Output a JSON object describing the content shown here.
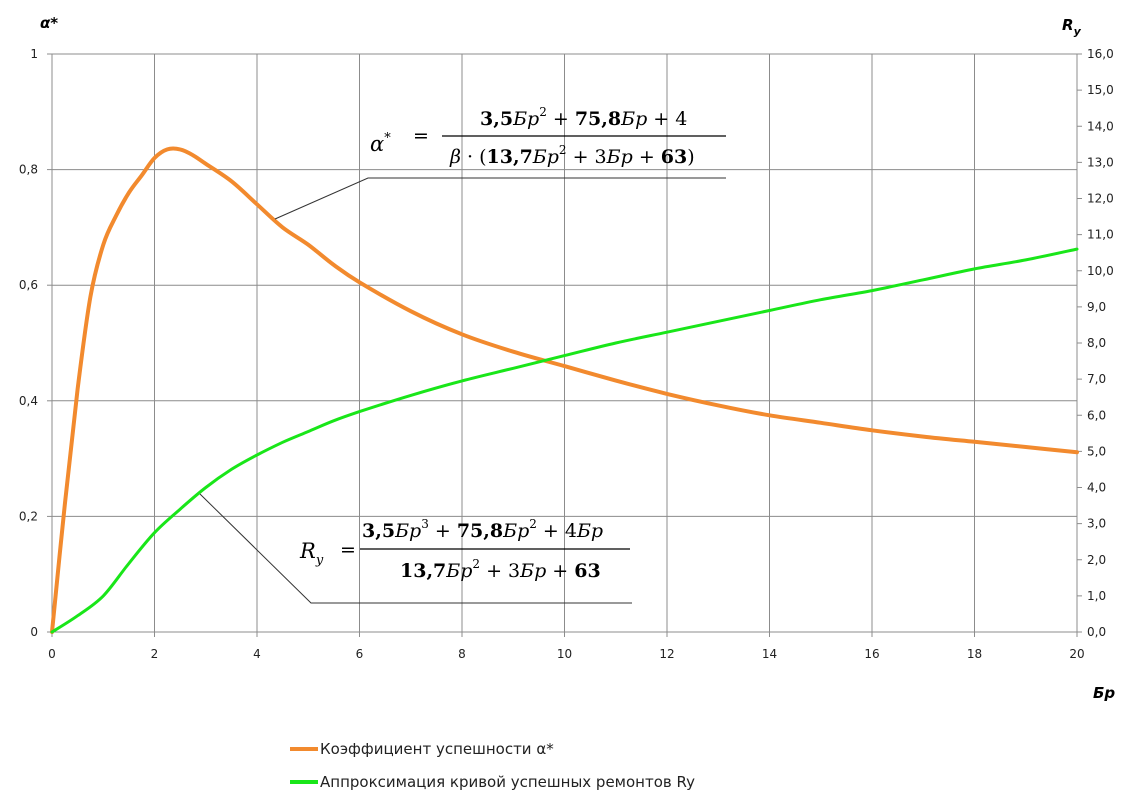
{
  "chart_data": {
    "type": "line",
    "xlabel": "Бр",
    "ylabel_left": "α*",
    "ylabel_right": "R",
    "ylabel_right_sub": "y",
    "xlim": [
      0,
      20
    ],
    "ylim_left": [
      0,
      1
    ],
    "ylim_right": [
      0,
      16
    ],
    "x_ticks": [
      "0",
      "2",
      "4",
      "6",
      "8",
      "10",
      "12",
      "14",
      "16",
      "18",
      "20"
    ],
    "y_left_ticks": [
      "0",
      "0,2",
      "0,4",
      "0,6",
      "0,8",
      "1"
    ],
    "y_right_ticks": [
      "0,0",
      "1,0",
      "2,0",
      "3,0",
      "4,0",
      "5,0",
      "6,0",
      "7,0",
      "8,0",
      "9,0",
      "10,0",
      "11,0",
      "12,0",
      "13,0",
      "14,0",
      "15,0",
      "16,0"
    ],
    "grid": true,
    "legend_position": "bottom",
    "colors": {
      "alpha": "#f28a2e",
      "ry": "#19e619",
      "grid": "#8c8c8c",
      "leader": "#333333"
    },
    "series": [
      {
        "name": "Коэффициент успешности α*",
        "axis": "left",
        "x": [
          0,
          0.25,
          0.5,
          0.75,
          1,
          1.25,
          1.5,
          1.75,
          2,
          2.25,
          2.5,
          2.75,
          3,
          3.5,
          4,
          4.5,
          5,
          5.5,
          6,
          7,
          8,
          9,
          10,
          11,
          12,
          13,
          14,
          15,
          16,
          17,
          18,
          19,
          20
        ],
        "y": [
          0,
          0.22,
          0.42,
          0.58,
          0.67,
          0.72,
          0.76,
          0.79,
          0.82,
          0.835,
          0.835,
          0.825,
          0.81,
          0.78,
          0.74,
          0.7,
          0.67,
          0.635,
          0.605,
          0.555,
          0.515,
          0.485,
          0.46,
          0.435,
          0.412,
          0.392,
          0.375,
          0.362,
          0.349,
          0.338,
          0.329,
          0.32,
          0.311
        ]
      },
      {
        "name": "Аппроксимация кривой успешных ремонтов Ry",
        "axis": "right",
        "x": [
          0,
          0.5,
          1,
          1.5,
          2,
          2.5,
          3,
          3.5,
          4,
          4.5,
          5,
          5.5,
          6,
          7,
          8,
          9,
          10,
          11,
          12,
          13,
          14,
          15,
          16,
          17,
          18,
          19,
          20
        ],
        "y": [
          0,
          0.45,
          1.0,
          1.9,
          2.75,
          3.4,
          4.0,
          4.5,
          4.9,
          5.25,
          5.55,
          5.85,
          6.1,
          6.55,
          6.95,
          7.3,
          7.65,
          8.0,
          8.3,
          8.6,
          8.9,
          9.2,
          9.45,
          9.75,
          10.05,
          10.3,
          10.6
        ]
      }
    ],
    "annotations": {
      "alpha_formula": {
        "lhs": "α",
        "lhs_sup": "*",
        "eq": "=",
        "num": [
          "3,5",
          "Бр",
          "2",
          " + ",
          "75,8",
          "Бр",
          " + 4"
        ],
        "den": [
          "β",
          " · (",
          "13,7",
          "Бр",
          "2",
          " + 3",
          "Бр",
          " + ",
          "63",
          ")"
        ]
      },
      "ry_formula": {
        "lhs": "R",
        "lhs_sub": "y",
        "eq": "=",
        "num": [
          "3,5",
          "Бр",
          "3",
          " + ",
          "75,8",
          "Бр",
          "2",
          " + 4",
          "Бр"
        ],
        "den": [
          "13,7",
          "Бр",
          "2",
          " + 3",
          "Бр",
          " + ",
          "63"
        ]
      }
    }
  }
}
